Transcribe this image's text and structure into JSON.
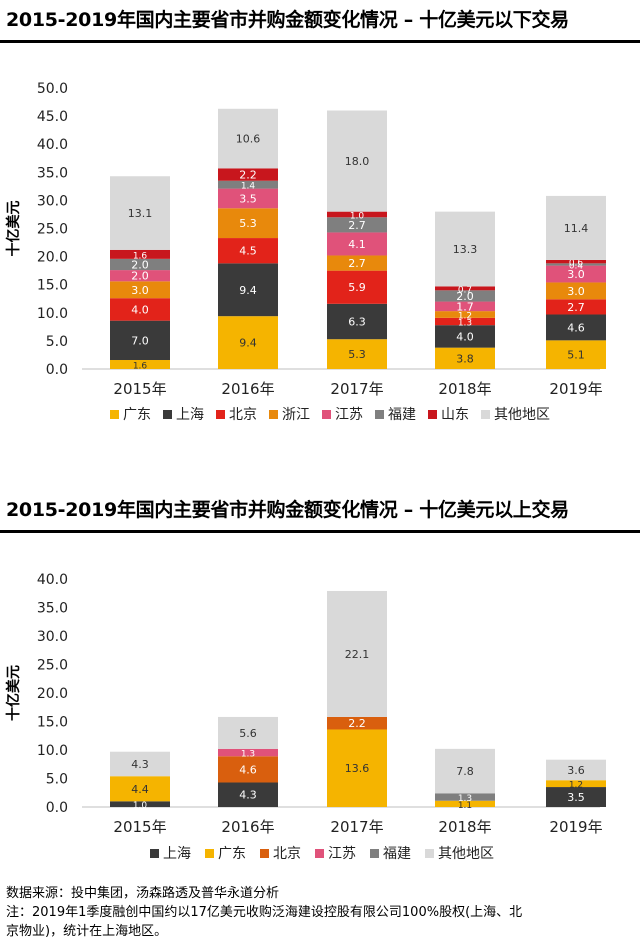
{
  "chart_data": [
    {
      "type": "bar",
      "stacked": true,
      "title": "2015-2019年国内主要省市并购金额变化情况 – 十亿美元以下交易",
      "ylabel": "十亿美元",
      "ylim": [
        0,
        50
      ],
      "yticks": [
        "0.0",
        "5.0",
        "10.0",
        "15.0",
        "20.0",
        "25.0",
        "30.0",
        "35.0",
        "40.0",
        "45.0",
        "50.0"
      ],
      "categories": [
        "2015年",
        "2016年",
        "2017年",
        "2018年",
        "2019年"
      ],
      "legend_position": "bottom",
      "series": [
        {
          "name": "广东",
          "color": "#F5B400",
          "values": [
            1.6,
            9.4,
            5.3,
            3.8,
            5.1
          ],
          "labels": [
            "1.6",
            "9.4",
            "5.3",
            "3.8",
            "5.1"
          ]
        },
        {
          "name": "上海",
          "color": "#3A3A3A",
          "values": [
            7.0,
            9.4,
            6.3,
            4.0,
            4.6
          ],
          "labels": [
            "7.0",
            "9.4",
            "6.3",
            "4.0",
            "4.6"
          ]
        },
        {
          "name": "北京",
          "color": "#E2231A",
          "values": [
            4.0,
            4.5,
            5.9,
            1.3,
            2.7
          ],
          "labels": [
            "4.0",
            "4.5",
            "5.9",
            "1.3",
            "2.7"
          ]
        },
        {
          "name": "浙江",
          "color": "#E8890C",
          "values": [
            3.0,
            5.3,
            2.7,
            1.2,
            3.0
          ],
          "labels": [
            "3.0",
            "5.3",
            "2.7",
            "1.2",
            "3.0"
          ]
        },
        {
          "name": "江苏",
          "color": "#E0527A",
          "values": [
            2.0,
            3.5,
            4.1,
            1.7,
            3.0
          ],
          "labels": [
            "2.0",
            "3.5",
            "4.1",
            "1.7",
            "3.0"
          ]
        },
        {
          "name": "福建",
          "color": "#7F7F7F",
          "values": [
            2.0,
            1.4,
            2.7,
            2.0,
            0.4
          ],
          "labels": [
            "2.0",
            "1.4",
            "2.7",
            "2.0",
            "0.4"
          ]
        },
        {
          "name": "山东",
          "color": "#C8161D",
          "values": [
            1.6,
            2.2,
            1.0,
            0.7,
            0.6
          ],
          "labels": [
            "1.6",
            "2.2",
            "1.0",
            "0.7",
            "0.6"
          ]
        },
        {
          "name": "其他地区",
          "color": "#D9D9D9",
          "values": [
            13.1,
            10.6,
            18.0,
            13.3,
            11.4
          ],
          "labels": [
            "13.1",
            "10.6",
            "18.0",
            "13.3",
            "11.4"
          ]
        }
      ]
    },
    {
      "type": "bar",
      "stacked": true,
      "title": "2015-2019年国内主要省市并购金额变化情况 – 十亿美元以上交易",
      "ylabel": "十亿美元",
      "ylim": [
        0,
        40
      ],
      "yticks": [
        "0.0",
        "5.0",
        "10.0",
        "15.0",
        "20.0",
        "25.0",
        "30.0",
        "35.0",
        "40.0"
      ],
      "categories": [
        "2015年",
        "2016年",
        "2017年",
        "2018年",
        "2019年"
      ],
      "legend_position": "bottom",
      "series": [
        {
          "name": "上海",
          "color": "#3A3A3A",
          "values": [
            1.0,
            4.3,
            0,
            0,
            3.5
          ],
          "labels": [
            "1.0",
            "4.3",
            "",
            "",
            "3.5"
          ]
        },
        {
          "name": "广东",
          "color": "#F5B400",
          "values": [
            4.4,
            0,
            13.6,
            1.1,
            1.2
          ],
          "labels": [
            "4.4",
            "",
            "13.6",
            "1.1",
            "1.2"
          ]
        },
        {
          "name": "北京",
          "color": "#D95F0E",
          "values": [
            0,
            4.6,
            2.2,
            0,
            0
          ],
          "labels": [
            "",
            "4.6",
            "2.2",
            "",
            ""
          ]
        },
        {
          "name": "江苏",
          "color": "#E0527A",
          "values": [
            0,
            1.3,
            0,
            0,
            0
          ],
          "labels": [
            "",
            "1.3",
            "",
            "",
            ""
          ]
        },
        {
          "name": "福建",
          "color": "#7F7F7F",
          "values": [
            0,
            0,
            0,
            1.3,
            0
          ],
          "labels": [
            "",
            "",
            "",
            "1.3",
            ""
          ]
        },
        {
          "name": "其他地区",
          "color": "#D9D9D9",
          "values": [
            4.3,
            5.6,
            22.1,
            7.8,
            3.6
          ],
          "labels": [
            "4.3",
            "5.6",
            "22.1",
            "7.8",
            "3.6"
          ]
        }
      ]
    }
  ],
  "footnote": {
    "source": "数据来源：投中集团，汤森路透及普华永道分析",
    "note_line1": "注：2019年1季度融创中国约以17亿美元收购泛海建设控股有限公司100%股权(上海、北",
    "note_line2": "京物业)，统计在上海地区。"
  }
}
